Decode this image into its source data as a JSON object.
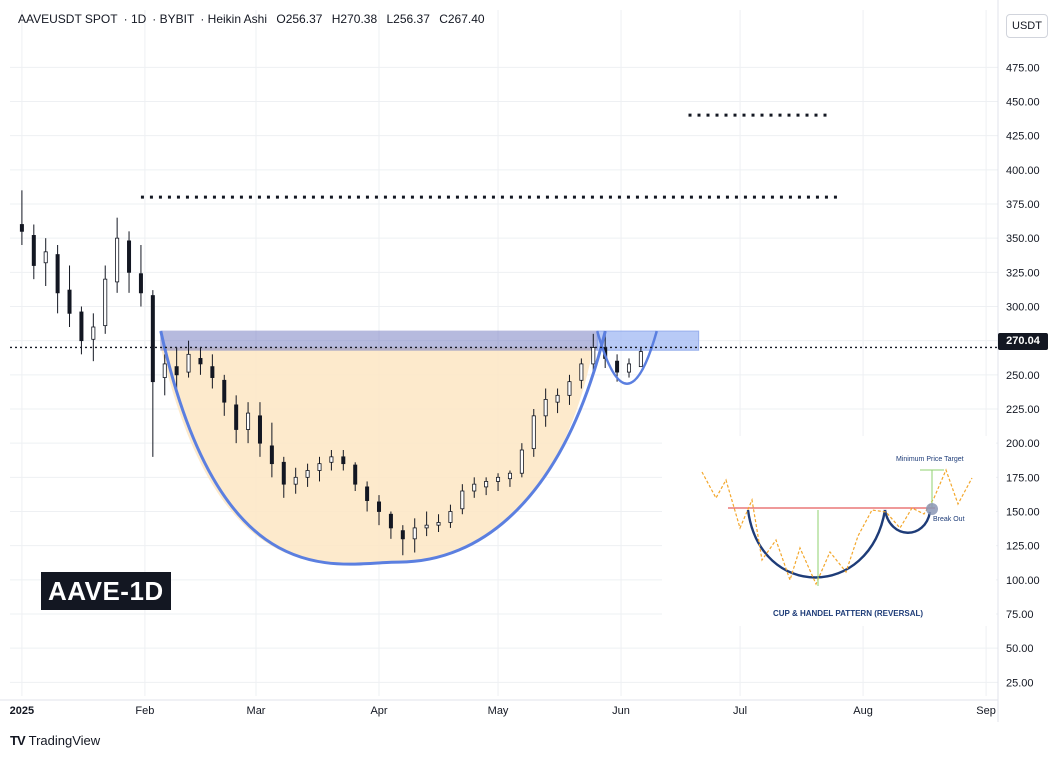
{
  "header": {
    "symbol": "AAVEUSDT SPOT",
    "interval": "1D",
    "exchange": "BYBIT",
    "chart_style": "Heikin Ashi",
    "open": "O256.37",
    "high": "H270.38",
    "low": "L256.37",
    "close": "C267.40"
  },
  "currency_badge": "USDT",
  "current_price_label": "270.04",
  "watermark": "AAVE-1D",
  "branding": "TradingView",
  "inset": {
    "caption": "CUP & HANDEL PATTERN (REVERSAL)",
    "target_label": "Minimum Price Target",
    "breakout_label": "Break Out"
  },
  "colors": {
    "up_candle": "#131722",
    "down_candle": "#131722",
    "cup_fill": "#fde6c3",
    "cup_line": "#5b7fe0",
    "resistance_box": "#7b82c4",
    "breakout_box": "#a7bdf5",
    "price_line": "#131722",
    "grid": "#eef0f3"
  },
  "chart_data": {
    "type": "candlestick",
    "y_axis": {
      "ticks": [
        "25.00",
        "50.00",
        "75.00",
        "100.00",
        "125.00",
        "150.00",
        "175.00",
        "200.00",
        "225.00",
        "250.00",
        "275.00",
        "300.00",
        "325.00",
        "350.00",
        "375.00",
        "400.00",
        "425.00",
        "450.00",
        "475.00"
      ],
      "range": [
        15,
        495
      ]
    },
    "x_axis": {
      "ticks": [
        "2025",
        "Feb",
        "Mar",
        "Apr",
        "May",
        "Jun",
        "Jul",
        "Aug",
        "Sep"
      ],
      "range": [
        "2024-12-29",
        "2025-09-04"
      ]
    },
    "ohlc": [
      [
        "2025-01-01",
        360,
        385,
        345,
        355
      ],
      [
        "2025-01-04",
        352,
        360,
        320,
        330
      ],
      [
        "2025-01-07",
        332,
        350,
        315,
        340
      ],
      [
        "2025-01-10",
        338,
        345,
        295,
        310
      ],
      [
        "2025-01-13",
        312,
        330,
        285,
        295
      ],
      [
        "2025-01-16",
        296,
        300,
        265,
        275
      ],
      [
        "2025-01-19",
        276,
        295,
        260,
        285
      ],
      [
        "2025-01-22",
        286,
        330,
        280,
        320
      ],
      [
        "2025-01-25",
        318,
        365,
        310,
        350
      ],
      [
        "2025-01-28",
        348,
        355,
        310,
        325
      ],
      [
        "2025-01-31",
        324,
        345,
        300,
        310
      ],
      [
        "2025-02-03",
        308,
        312,
        190,
        245
      ],
      [
        "2025-02-06",
        248,
        265,
        235,
        258
      ],
      [
        "2025-02-09",
        256,
        270,
        240,
        250
      ],
      [
        "2025-02-12",
        252,
        275,
        248,
        265
      ],
      [
        "2025-02-15",
        262,
        270,
        250,
        258
      ],
      [
        "2025-02-18",
        256,
        265,
        240,
        248
      ],
      [
        "2025-02-21",
        246,
        250,
        220,
        230
      ],
      [
        "2025-02-24",
        228,
        235,
        200,
        210
      ],
      [
        "2025-02-27",
        210,
        230,
        200,
        222
      ],
      [
        "2025-03-02",
        220,
        230,
        190,
        200
      ],
      [
        "2025-03-05",
        198,
        215,
        175,
        185
      ],
      [
        "2025-03-08",
        186,
        190,
        160,
        170
      ],
      [
        "2025-03-11",
        170,
        182,
        163,
        175
      ],
      [
        "2025-03-14",
        175,
        185,
        168,
        180
      ],
      [
        "2025-03-17",
        180,
        190,
        172,
        185
      ],
      [
        "2025-03-20",
        186,
        195,
        180,
        190
      ],
      [
        "2025-03-23",
        190,
        195,
        180,
        185
      ],
      [
        "2025-03-26",
        184,
        186,
        165,
        170
      ],
      [
        "2025-03-29",
        168,
        172,
        150,
        158
      ],
      [
        "2025-04-01",
        157,
        162,
        140,
        150
      ],
      [
        "2025-04-04",
        148,
        150,
        130,
        138
      ],
      [
        "2025-04-07",
        136,
        140,
        118,
        130
      ],
      [
        "2025-04-10",
        130,
        145,
        120,
        138
      ],
      [
        "2025-04-13",
        138,
        150,
        132,
        140
      ],
      [
        "2025-04-16",
        140,
        148,
        135,
        142
      ],
      [
        "2025-04-19",
        142,
        155,
        138,
        150
      ],
      [
        "2025-04-22",
        152,
        170,
        148,
        165
      ],
      [
        "2025-04-25",
        165,
        175,
        160,
        170
      ],
      [
        "2025-04-28",
        168,
        175,
        162,
        172
      ],
      [
        "2025-05-01",
        172,
        178,
        165,
        175
      ],
      [
        "2025-05-04",
        174,
        180,
        168,
        178
      ],
      [
        "2025-05-07",
        178,
        200,
        175,
        195
      ],
      [
        "2025-05-10",
        196,
        225,
        190,
        220
      ],
      [
        "2025-05-13",
        220,
        240,
        212,
        232
      ],
      [
        "2025-05-16",
        230,
        240,
        222,
        235
      ],
      [
        "2025-05-19",
        235,
        250,
        228,
        245
      ],
      [
        "2025-05-22",
        246,
        262,
        240,
        258
      ],
      [
        "2025-05-25",
        258,
        280,
        250,
        270
      ],
      [
        "2025-05-28",
        270,
        282,
        255,
        262
      ],
      [
        "2025-05-31",
        260,
        265,
        245,
        252
      ],
      [
        "2025-06-03",
        252,
        262,
        248,
        258
      ],
      [
        "2025-06-06",
        256,
        270,
        256,
        267
      ]
    ],
    "annotations": [
      {
        "type": "hline",
        "price": 270.04,
        "style": "dotted",
        "label": "270.04"
      },
      {
        "type": "hline",
        "price": 380,
        "style": "dotted",
        "from": "2025-01-31",
        "to": "2025-07-26"
      },
      {
        "type": "hline",
        "price": 440,
        "style": "dotted",
        "from": "2025-06-18",
        "to": "2025-07-23"
      },
      {
        "type": "zone",
        "from_price": 268,
        "to_price": 282,
        "from": "2025-02-05",
        "to": "2025-06-13"
      },
      {
        "type": "pattern",
        "name": "cup and handle",
        "cup_low": 113,
        "rim": 282,
        "from": "2025-02-05",
        "to": "2025-06-10"
      }
    ]
  }
}
